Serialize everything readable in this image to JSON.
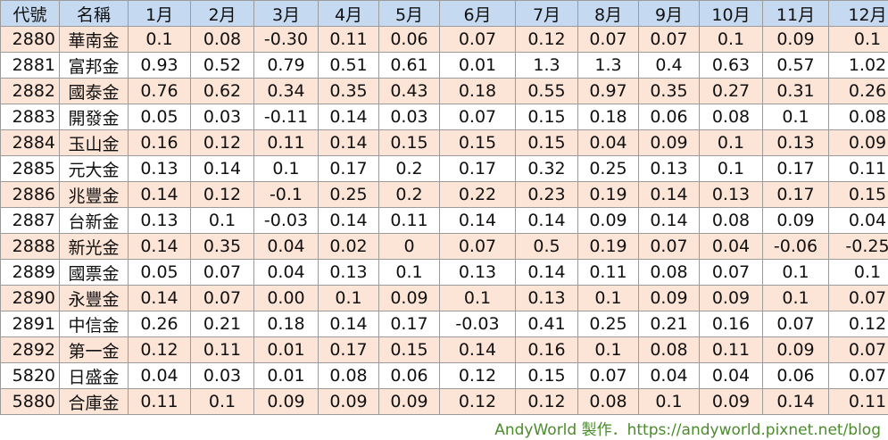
{
  "table": {
    "headers": [
      "代號",
      "名稱",
      "1月",
      "2月",
      "3月",
      "4月",
      "5月",
      "6月",
      "7月",
      "8月",
      "9月",
      "10月",
      "11月",
      "12月"
    ],
    "rows": [
      [
        "2880",
        "華南金",
        "0.1",
        "0.08",
        "-0.30",
        "0.11",
        "0.06",
        "0.07",
        "0.12",
        "0.07",
        "0.07",
        "0.1",
        "0.09",
        "0.1"
      ],
      [
        "2881",
        "富邦金",
        "0.93",
        "0.52",
        "0.79",
        "0.51",
        "0.61",
        "0.01",
        "1.3",
        "1.3",
        "0.4",
        "0.63",
        "0.57",
        "1.02"
      ],
      [
        "2882",
        "國泰金",
        "0.76",
        "0.62",
        "0.34",
        "0.35",
        "0.43",
        "0.18",
        "0.55",
        "0.97",
        "0.35",
        "0.27",
        "0.31",
        "0.26"
      ],
      [
        "2883",
        "開發金",
        "0.05",
        "0.03",
        "-0.11",
        "0.14",
        "0.03",
        "0.07",
        "0.15",
        "0.18",
        "0.06",
        "0.08",
        "0.1",
        "0.08"
      ],
      [
        "2884",
        "玉山金",
        "0.16",
        "0.12",
        "0.11",
        "0.14",
        "0.15",
        "0.15",
        "0.15",
        "0.04",
        "0.09",
        "0.1",
        "0.13",
        "0.09"
      ],
      [
        "2885",
        "元大金",
        "0.13",
        "0.14",
        "0.1",
        "0.17",
        "0.2",
        "0.17",
        "0.32",
        "0.25",
        "0.13",
        "0.1",
        "0.17",
        "0.11"
      ],
      [
        "2886",
        "兆豐金",
        "0.14",
        "0.12",
        "-0.1",
        "0.25",
        "0.2",
        "0.22",
        "0.23",
        "0.19",
        "0.14",
        "0.13",
        "0.17",
        "0.15"
      ],
      [
        "2887",
        "台新金",
        "0.13",
        "0.1",
        "-0.03",
        "0.14",
        "0.11",
        "0.14",
        "0.14",
        "0.09",
        "0.14",
        "0.08",
        "0.09",
        "0.04"
      ],
      [
        "2888",
        "新光金",
        "0.14",
        "0.35",
        "0.04",
        "0.02",
        "0",
        "0.07",
        "0.5",
        "0.19",
        "0.07",
        "0.04",
        "-0.06",
        "-0.25"
      ],
      [
        "2889",
        "國票金",
        "0.05",
        "0.07",
        "0.04",
        "0.13",
        "0.1",
        "0.13",
        "0.14",
        "0.11",
        "0.08",
        "0.07",
        "0.1",
        "0.1"
      ],
      [
        "2890",
        "永豐金",
        "0.14",
        "0.07",
        "0.00",
        "0.1",
        "0.09",
        "0.1",
        "0.13",
        "0.1",
        "0.09",
        "0.09",
        "0.1",
        "0.07"
      ],
      [
        "2891",
        "中信金",
        "0.26",
        "0.21",
        "0.18",
        "0.14",
        "0.17",
        "-0.03",
        "0.41",
        "0.25",
        "0.21",
        "0.16",
        "0.07",
        "0.12"
      ],
      [
        "2892",
        "第一金",
        "0.12",
        "0.11",
        "0.01",
        "0.17",
        "0.15",
        "0.14",
        "0.16",
        "0.1",
        "0.08",
        "0.11",
        "0.09",
        "0.07"
      ],
      [
        "5820",
        "日盛金",
        "0.04",
        "0.03",
        "0.01",
        "0.08",
        "0.06",
        "0.12",
        "0.15",
        "0.07",
        "0.04",
        "0.04",
        "0.06",
        "0.07"
      ],
      [
        "5880",
        "合庫金",
        "0.11",
        "0.1",
        "0.09",
        "0.09",
        "0.09",
        "0.12",
        "0.12",
        "0.08",
        "0.1",
        "0.09",
        "0.14",
        "0.11"
      ]
    ]
  },
  "footer": {
    "text": "AndyWorld 製作．https://andyworld.pixnet.net/blog"
  },
  "colors": {
    "header_bg": "#c5d9f1",
    "alt_row_bg": "#fce4d6",
    "footer_text": "#4a8c2a"
  }
}
